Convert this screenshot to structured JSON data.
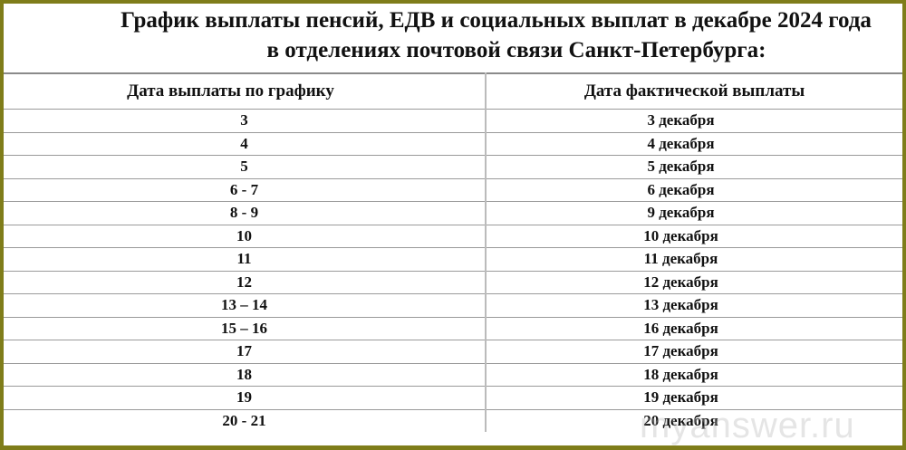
{
  "title": {
    "line1": "График выплаты пенсий, ЕДВ и социальных выплат в декабре 2024 года",
    "line2": "в отделениях почтовой связи Санкт-Петербурга:"
  },
  "table": {
    "headers": [
      "Дата выплаты по графику",
      "Дата фактической выплаты"
    ],
    "rows": [
      [
        "3",
        "3 декабря"
      ],
      [
        "4",
        "4 декабря"
      ],
      [
        "5",
        "5 декабря"
      ],
      [
        "6 - 7",
        "6 декабря"
      ],
      [
        "8 - 9",
        "9 декабря"
      ],
      [
        "10",
        "10 декабря"
      ],
      [
        "11",
        "11 декабря"
      ],
      [
        "12",
        "12 декабря"
      ],
      [
        "13 – 14",
        "13 декабря"
      ],
      [
        "15 – 16",
        "16 декабря"
      ],
      [
        "17",
        "17 декабря"
      ],
      [
        "18",
        "18 декабря"
      ],
      [
        "19",
        "19 декабря"
      ],
      [
        "20 - 21",
        "20 декабря"
      ]
    ]
  },
  "watermark": "myanswer.ru",
  "colors": {
    "frame": "#7f7d1a"
  }
}
